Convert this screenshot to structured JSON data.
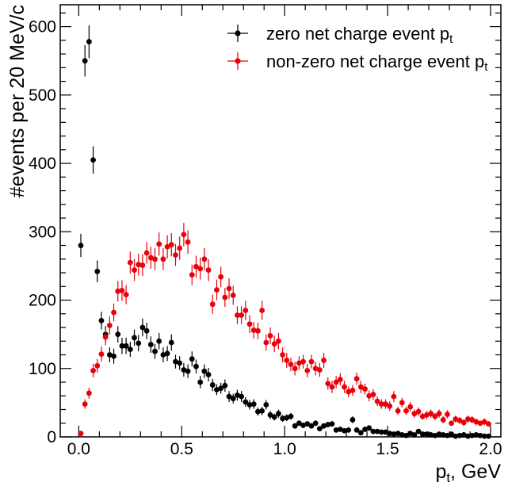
{
  "chart_data": {
    "type": "scatter",
    "xlabel": "p",
    "xlabel_sub": "t",
    "xlabel_tail": ", GeV",
    "ylabel": "#events per 20 MeV/c",
    "xlim": [
      -0.09,
      2.05
    ],
    "ylim": [
      0,
      632
    ],
    "xticks": [
      0.0,
      0.5,
      1.0,
      1.5,
      2.0
    ],
    "xtick_labels": [
      "0.0",
      "0.5",
      "1.0",
      "1.5",
      "2.0"
    ],
    "yticks": [
      0,
      100,
      200,
      300,
      400,
      500,
      600
    ],
    "ytick_labels": [
      "0",
      "100",
      "200",
      "300",
      "400",
      "500",
      "600"
    ],
    "grid": false,
    "legend_position": "top-right",
    "series": [
      {
        "name_main": "zero net charge event p",
        "name_sub": "t",
        "color": "#000000",
        "x": [
          0.01,
          0.03,
          0.05,
          0.07,
          0.09,
          0.11,
          0.13,
          0.15,
          0.17,
          0.19,
          0.21,
          0.23,
          0.25,
          0.27,
          0.29,
          0.31,
          0.33,
          0.35,
          0.37,
          0.39,
          0.41,
          0.43,
          0.45,
          0.47,
          0.49,
          0.51,
          0.53,
          0.55,
          0.57,
          0.59,
          0.61,
          0.63,
          0.65,
          0.67,
          0.69,
          0.71,
          0.73,
          0.75,
          0.77,
          0.79,
          0.81,
          0.83,
          0.85,
          0.87,
          0.89,
          0.91,
          0.93,
          0.95,
          0.97,
          0.99,
          1.01,
          1.03,
          1.05,
          1.07,
          1.09,
          1.11,
          1.13,
          1.15,
          1.17,
          1.19,
          1.21,
          1.23,
          1.25,
          1.27,
          1.29,
          1.31,
          1.33,
          1.35,
          1.37,
          1.39,
          1.41,
          1.43,
          1.45,
          1.47,
          1.49,
          1.51,
          1.53,
          1.55,
          1.57,
          1.59,
          1.61,
          1.63,
          1.65,
          1.67,
          1.69,
          1.71,
          1.73,
          1.75,
          1.77,
          1.79,
          1.81,
          1.83,
          1.85,
          1.87,
          1.89,
          1.91,
          1.93,
          1.95,
          1.97,
          1.99
        ],
        "y": [
          280,
          550,
          578,
          405,
          242,
          170,
          150,
          120,
          118,
          150,
          133,
          133,
          128,
          145,
          137,
          160,
          155,
          135,
          125,
          140,
          120,
          122,
          138,
          110,
          108,
          98,
          96,
          114,
          103,
          80,
          96,
          91,
          76,
          69,
          71,
          75,
          59,
          56,
          61,
          59,
          51,
          47,
          48,
          37,
          38,
          47,
          32,
          29,
          34,
          27,
          28,
          30,
          16,
          20,
          17,
          19,
          16,
          20,
          12,
          16,
          18,
          19,
          10,
          11,
          9,
          10,
          25,
          10,
          6,
          11,
          13,
          8,
          8,
          7,
          7,
          5,
          4,
          5,
          3,
          2,
          5,
          3,
          8,
          4,
          4,
          3,
          2,
          4,
          3,
          2,
          4,
          1,
          2,
          3,
          1,
          2,
          3,
          2,
          1,
          1
        ],
        "err": [
          17,
          23,
          24,
          20,
          16,
          13,
          12,
          11,
          11,
          12,
          12,
          12,
          11,
          12,
          12,
          13,
          12,
          12,
          11,
          12,
          11,
          11,
          12,
          10,
          10,
          10,
          10,
          11,
          10,
          9,
          10,
          10,
          9,
          8,
          8,
          9,
          8,
          7,
          8,
          8,
          7,
          7,
          7,
          6,
          6,
          7,
          6,
          5,
          6,
          5,
          5,
          5,
          4,
          4,
          4,
          4,
          4,
          4,
          3,
          4,
          4,
          4,
          3,
          3,
          3,
          3,
          5,
          3,
          2,
          3,
          4,
          3,
          3,
          3,
          3,
          2,
          2,
          2,
          2,
          1,
          2,
          2,
          3,
          2,
          2,
          2,
          1,
          2,
          2,
          1,
          2,
          1,
          1,
          2,
          1,
          1,
          2,
          1,
          1,
          1
        ]
      },
      {
        "name_main": "non-zero net charge event p",
        "name_sub": "t",
        "color": "#e8000b",
        "x": [
          0.01,
          0.03,
          0.05,
          0.07,
          0.09,
          0.11,
          0.13,
          0.15,
          0.17,
          0.19,
          0.21,
          0.23,
          0.25,
          0.27,
          0.29,
          0.31,
          0.33,
          0.35,
          0.37,
          0.39,
          0.41,
          0.43,
          0.45,
          0.47,
          0.49,
          0.51,
          0.53,
          0.55,
          0.57,
          0.59,
          0.61,
          0.63,
          0.65,
          0.67,
          0.69,
          0.71,
          0.73,
          0.75,
          0.77,
          0.79,
          0.81,
          0.83,
          0.85,
          0.87,
          0.89,
          0.91,
          0.93,
          0.95,
          0.97,
          0.99,
          1.01,
          1.03,
          1.05,
          1.07,
          1.09,
          1.11,
          1.13,
          1.15,
          1.17,
          1.19,
          1.21,
          1.23,
          1.25,
          1.27,
          1.29,
          1.31,
          1.33,
          1.35,
          1.37,
          1.39,
          1.41,
          1.43,
          1.45,
          1.47,
          1.49,
          1.51,
          1.53,
          1.55,
          1.57,
          1.59,
          1.61,
          1.63,
          1.65,
          1.67,
          1.69,
          1.71,
          1.73,
          1.75,
          1.77,
          1.79,
          1.81,
          1.83,
          1.85,
          1.87,
          1.89,
          1.91,
          1.93,
          1.95,
          1.97,
          1.99
        ],
        "y": [
          5,
          48,
          64,
          97,
          104,
          121,
          146,
          163,
          182,
          213,
          214,
          208,
          255,
          244,
          252,
          251,
          269,
          262,
          260,
          282,
          260,
          278,
          281,
          266,
          276,
          296,
          285,
          237,
          249,
          246,
          260,
          244,
          194,
          215,
          234,
          204,
          217,
          207,
          178,
          178,
          185,
          165,
          156,
          155,
          185,
          138,
          148,
          136,
          140,
          120,
          112,
          106,
          100,
          108,
          110,
          97,
          110,
          100,
          98,
          112,
          78,
          73,
          80,
          84,
          73,
          66,
          68,
          85,
          73,
          70,
          60,
          62,
          52,
          48,
          48,
          45,
          59,
          38,
          50,
          38,
          44,
          34,
          37,
          30,
          32,
          34,
          30,
          34,
          25,
          33,
          20,
          26,
          24,
          21,
          26,
          25,
          22,
          20,
          22,
          19
        ],
        "err": [
          2,
          7,
          8,
          10,
          10,
          11,
          12,
          13,
          13,
          15,
          15,
          14,
          16,
          16,
          16,
          16,
          16,
          16,
          16,
          17,
          16,
          17,
          17,
          16,
          17,
          17,
          17,
          15,
          16,
          16,
          16,
          16,
          14,
          15,
          15,
          14,
          15,
          14,
          13,
          13,
          14,
          13,
          12,
          12,
          14,
          12,
          12,
          12,
          12,
          11,
          11,
          10,
          10,
          10,
          10,
          10,
          10,
          10,
          10,
          11,
          9,
          9,
          9,
          9,
          9,
          8,
          8,
          9,
          9,
          8,
          8,
          8,
          7,
          7,
          7,
          7,
          8,
          6,
          7,
          6,
          7,
          6,
          6,
          5,
          6,
          6,
          5,
          6,
          5,
          6,
          4,
          5,
          5,
          5,
          5,
          5,
          5,
          4,
          5,
          4
        ]
      }
    ]
  }
}
